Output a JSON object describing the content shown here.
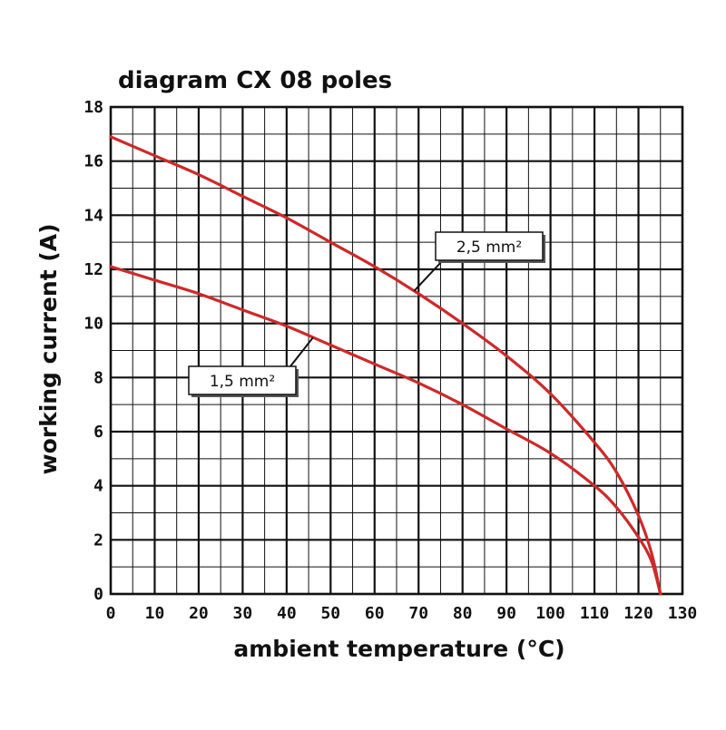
{
  "chart_data": {
    "type": "line",
    "title": "diagram CX 08 poles",
    "xlabel": "ambient temperature (°C)",
    "ylabel": "working current (A)",
    "xlim": [
      0,
      130
    ],
    "ylim": [
      0,
      18
    ],
    "x_ticks": [
      0,
      10,
      20,
      30,
      40,
      50,
      60,
      70,
      80,
      90,
      100,
      110,
      120,
      130
    ],
    "y_ticks": [
      0,
      2,
      4,
      6,
      8,
      10,
      12,
      14,
      16,
      18
    ],
    "x_minor_step": 5,
    "y_minor_step": 1,
    "grid": true,
    "colors": {
      "line": "#cc2a2a",
      "grid": "#111111",
      "plot_background": "#ffffff"
    },
    "series": [
      {
        "name": "2,5 mm²",
        "x": [
          0,
          10,
          20,
          30,
          40,
          50,
          60,
          70,
          80,
          90,
          100,
          110,
          115,
          120,
          123,
          125
        ],
        "y": [
          16.9,
          16.2,
          15.5,
          14.7,
          13.9,
          13.0,
          12.1,
          11.1,
          10.0,
          8.8,
          7.4,
          5.6,
          4.5,
          2.9,
          1.5,
          0
        ]
      },
      {
        "name": "1,5 mm²",
        "x": [
          0,
          10,
          20,
          30,
          40,
          50,
          60,
          70,
          80,
          90,
          100,
          110,
          115,
          120,
          123,
          125
        ],
        "y": [
          12.1,
          11.6,
          11.1,
          10.5,
          9.9,
          9.2,
          8.5,
          7.8,
          7.0,
          6.1,
          5.2,
          4.0,
          3.2,
          2.1,
          1.2,
          0
        ]
      }
    ]
  }
}
